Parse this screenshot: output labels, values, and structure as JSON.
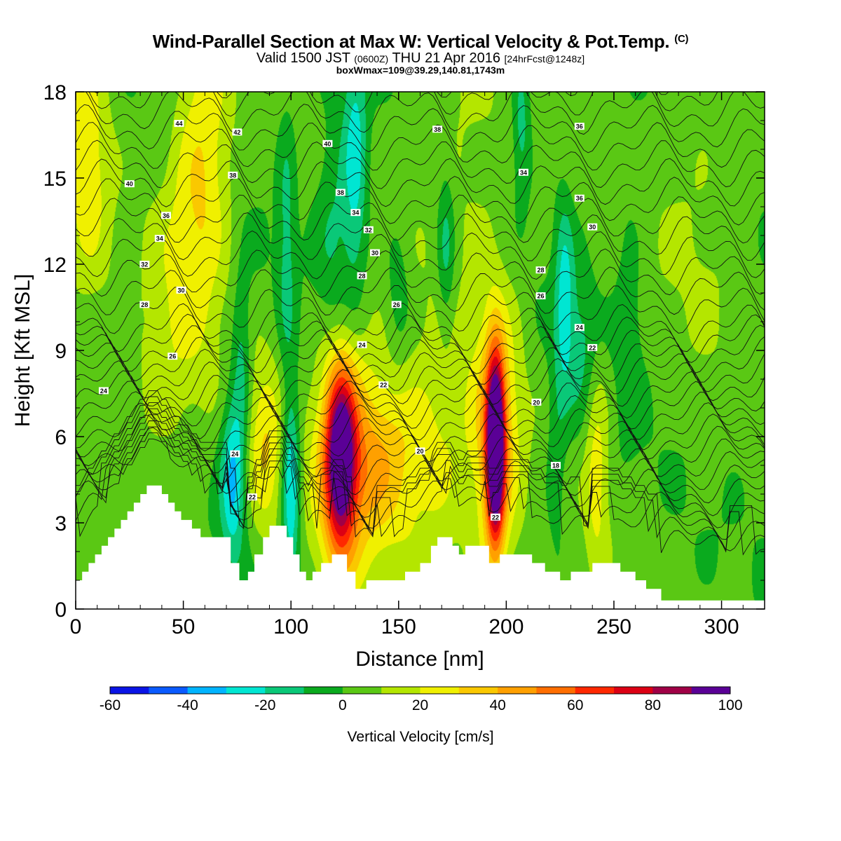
{
  "titles": {
    "main": "Wind-Parallel Section at Max W: Vertical Velocity & Pot.Temp.",
    "main_mark": "(C)",
    "valid_prefix": "Valid 1500 JST",
    "valid_zulu": "(0600Z)",
    "valid_date": "THU 21 Apr 2016",
    "valid_fcst": "[24hrFcst@1248z]",
    "box": "boxWmax=109@39.29,140.81,1743m"
  },
  "chart_data": {
    "type": "heatmap",
    "xlabel": "Distance [nm]",
    "ylabel": "Height [Kft MSL]",
    "xlim": [
      0,
      320
    ],
    "ylim": [
      0,
      18
    ],
    "xticks": [
      0,
      50,
      100,
      150,
      200,
      250,
      300
    ],
    "yticks": [
      0,
      3,
      6,
      9,
      12,
      15,
      18
    ],
    "colorbar": {
      "label": "Vertical Velocity [cm/s]",
      "levels": [
        -60,
        -50,
        -40,
        -30,
        -20,
        -10,
        0,
        10,
        20,
        30,
        40,
        50,
        60,
        70,
        80,
        90,
        100
      ],
      "tick_labels": [
        "-60",
        "-40",
        "-20",
        "0",
        "20",
        "40",
        "60",
        "80",
        "100"
      ],
      "colors": [
        "#0a14e6",
        "#0a5aff",
        "#00b4ff",
        "#00e6d2",
        "#0ac878",
        "#0aaa1e",
        "#5ac814",
        "#b4e600",
        "#f0f000",
        "#fac800",
        "#ffa000",
        "#ff6e00",
        "#ff2800",
        "#dc0014",
        "#a00046",
        "#5a0096"
      ]
    },
    "terrain_kft": [
      [
        0,
        1.0
      ],
      [
        3,
        1.0
      ],
      [
        3,
        1.3
      ],
      [
        6,
        1.3
      ],
      [
        6,
        1.6
      ],
      [
        9,
        1.6
      ],
      [
        9,
        1.9
      ],
      [
        12,
        1.9
      ],
      [
        12,
        2.2
      ],
      [
        15,
        2.2
      ],
      [
        15,
        2.5
      ],
      [
        18,
        2.5
      ],
      [
        18,
        2.8
      ],
      [
        21,
        2.8
      ],
      [
        21,
        3.1
      ],
      [
        24,
        3.1
      ],
      [
        24,
        3.4
      ],
      [
        27,
        3.4
      ],
      [
        27,
        3.7
      ],
      [
        30,
        3.7
      ],
      [
        30,
        4.0
      ],
      [
        33,
        4.0
      ],
      [
        33,
        4.3
      ],
      [
        40,
        4.3
      ],
      [
        40,
        4.0
      ],
      [
        43,
        4.0
      ],
      [
        43,
        3.7
      ],
      [
        46,
        3.7
      ],
      [
        46,
        3.4
      ],
      [
        49,
        3.4
      ],
      [
        49,
        3.1
      ],
      [
        54,
        3.1
      ],
      [
        54,
        2.8
      ],
      [
        58,
        2.8
      ],
      [
        58,
        2.5
      ],
      [
        72,
        2.5
      ],
      [
        72,
        1.6
      ],
      [
        76,
        1.6
      ],
      [
        76,
        1.0
      ],
      [
        80,
        1.0
      ],
      [
        80,
        1.3
      ],
      [
        83,
        1.3
      ],
      [
        83,
        1.9
      ],
      [
        87,
        1.9
      ],
      [
        87,
        2.5
      ],
      [
        90,
        2.5
      ],
      [
        90,
        2.9
      ],
      [
        98,
        2.9
      ],
      [
        98,
        2.5
      ],
      [
        101,
        2.5
      ],
      [
        101,
        1.9
      ],
      [
        104,
        1.9
      ],
      [
        104,
        1.3
      ],
      [
        107,
        1.3
      ],
      [
        107,
        1.0
      ],
      [
        110,
        1.0
      ],
      [
        110,
        1.3
      ],
      [
        114,
        1.3
      ],
      [
        114,
        1.6
      ],
      [
        119,
        1.6
      ],
      [
        119,
        1.9
      ],
      [
        126,
        1.9
      ],
      [
        126,
        1.3
      ],
      [
        130,
        1.3
      ],
      [
        130,
        0.7
      ],
      [
        135,
        0.7
      ],
      [
        135,
        1.0
      ],
      [
        153,
        1.0
      ],
      [
        153,
        1.3
      ],
      [
        160,
        1.3
      ],
      [
        160,
        1.6
      ],
      [
        165,
        1.6
      ],
      [
        165,
        2.2
      ],
      [
        168,
        2.2
      ],
      [
        168,
        2.5
      ],
      [
        175,
        2.5
      ],
      [
        175,
        2.2
      ],
      [
        178,
        2.2
      ],
      [
        178,
        1.9
      ],
      [
        181,
        1.9
      ],
      [
        181,
        2.2
      ],
      [
        192,
        2.2
      ],
      [
        192,
        1.6
      ],
      [
        197,
        1.6
      ],
      [
        197,
        1.9
      ],
      [
        212,
        1.9
      ],
      [
        212,
        1.6
      ],
      [
        218,
        1.6
      ],
      [
        218,
        1.3
      ],
      [
        225,
        1.3
      ],
      [
        225,
        1.0
      ],
      [
        230,
        1.0
      ],
      [
        230,
        1.3
      ],
      [
        240,
        1.3
      ],
      [
        240,
        1.6
      ],
      [
        253,
        1.6
      ],
      [
        253,
        1.3
      ],
      [
        260,
        1.3
      ],
      [
        260,
        1.0
      ],
      [
        265,
        1.0
      ],
      [
        265,
        0.7
      ],
      [
        272,
        0.7
      ],
      [
        272,
        0.3
      ],
      [
        320,
        0.3
      ]
    ],
    "w_features": [
      {
        "x": 123,
        "z": 5.3,
        "sx": 5,
        "sz": 2.2,
        "w": 85
      },
      {
        "x": 124,
        "z": 5.3,
        "sx": 11,
        "sz": 3.3,
        "w": 30
      },
      {
        "x": 195,
        "z": 5.6,
        "sx": 3,
        "sz": 2.2,
        "w": 110
      },
      {
        "x": 195,
        "z": 5.8,
        "sx": 8,
        "sz": 3.6,
        "w": 35
      },
      {
        "x": 143,
        "z": 5.2,
        "sx": 12,
        "sz": 2.2,
        "w": 32
      },
      {
        "x": 168,
        "z": 5.0,
        "sx": 11,
        "sz": 3.0,
        "w": 18
      },
      {
        "x": 88,
        "z": 5.6,
        "sx": 6,
        "sz": 2.2,
        "w": 25
      },
      {
        "x": 242,
        "z": 5.0,
        "sx": 4,
        "sz": 2.5,
        "w": 22
      },
      {
        "x": 60,
        "z": 16.0,
        "sx": 9,
        "sz": 3.8,
        "w": 25
      },
      {
        "x": 50,
        "z": 12.5,
        "sx": 10,
        "sz": 2.8,
        "w": 14
      },
      {
        "x": 5,
        "z": 15.8,
        "sx": 8,
        "sz": 3.8,
        "w": 22
      },
      {
        "x": 40,
        "z": 7.5,
        "sx": 14,
        "sz": 2.5,
        "w": 10
      },
      {
        "x": 73,
        "z": 4.6,
        "sx": 4,
        "sz": 2.0,
        "w": -35
      },
      {
        "x": 100,
        "z": 4.3,
        "sx": 3,
        "sz": 2.4,
        "w": -38
      },
      {
        "x": 77,
        "z": 8.5,
        "sx": 3,
        "sz": 2.2,
        "w": -18
      },
      {
        "x": 120,
        "z": 13.0,
        "sx": 6,
        "sz": 3.2,
        "w": -16
      },
      {
        "x": 130,
        "z": 15.6,
        "sx": 4,
        "sz": 3.2,
        "w": -28
      },
      {
        "x": 98,
        "z": 13.0,
        "sx": 3,
        "sz": 3.2,
        "w": -16
      },
      {
        "x": 172,
        "z": 12.5,
        "sx": 3,
        "sz": 2.2,
        "w": -20
      },
      {
        "x": 207,
        "z": 17.0,
        "sx": 3,
        "sz": 1.8,
        "w": -20
      },
      {
        "x": 227,
        "z": 10.8,
        "sx": 3,
        "sz": 2.4,
        "w": -26
      },
      {
        "x": 150,
        "z": 11.0,
        "sx": 4,
        "sz": 1.8,
        "w": -12
      },
      {
        "x": 257,
        "z": 10.0,
        "sx": 4,
        "sz": 2.8,
        "w": -12
      },
      {
        "x": 223,
        "z": 5.5,
        "sx": 3,
        "sz": 2.5,
        "w": -12
      },
      {
        "x": 235,
        "z": 9.0,
        "sx": 5,
        "sz": 2.0,
        "w": -14
      },
      {
        "x": 180,
        "z": 16.0,
        "sx": 15,
        "sz": 3.5,
        "w": 10
      },
      {
        "x": 290,
        "z": 14.0,
        "sx": 15,
        "sz": 4.0,
        "w": 8
      }
    ],
    "theta_levels": [
      18,
      20,
      22,
      24,
      26,
      28,
      30,
      32,
      34,
      36,
      38,
      40,
      42,
      44
    ],
    "theta_labels": [
      {
        "text": "44",
        "x": 48,
        "z": 16.9
      },
      {
        "text": "42",
        "x": 75,
        "z": 16.6
      },
      {
        "text": "40",
        "x": 117,
        "z": 16.2
      },
      {
        "text": "38",
        "x": 168,
        "z": 16.7
      },
      {
        "text": "36",
        "x": 234,
        "z": 16.8
      },
      {
        "text": "40",
        "x": 25,
        "z": 14.8
      },
      {
        "text": "38",
        "x": 73,
        "z": 15.1
      },
      {
        "text": "38",
        "x": 123,
        "z": 14.5
      },
      {
        "text": "34",
        "x": 208,
        "z": 15.2
      },
      {
        "text": "36",
        "x": 42,
        "z": 13.7
      },
      {
        "text": "34",
        "x": 130,
        "z": 13.8
      },
      {
        "text": "36",
        "x": 234,
        "z": 14.3
      },
      {
        "text": "34",
        "x": 39,
        "z": 12.9
      },
      {
        "text": "32",
        "x": 136,
        "z": 13.2
      },
      {
        "text": "30",
        "x": 240,
        "z": 13.3
      },
      {
        "text": "32",
        "x": 32,
        "z": 12.0
      },
      {
        "text": "30",
        "x": 139,
        "z": 12.4
      },
      {
        "text": "28",
        "x": 216,
        "z": 11.8
      },
      {
        "text": "30",
        "x": 49,
        "z": 11.1
      },
      {
        "text": "28",
        "x": 133,
        "z": 11.6
      },
      {
        "text": "26",
        "x": 216,
        "z": 10.9
      },
      {
        "text": "28",
        "x": 32,
        "z": 10.6
      },
      {
        "text": "26",
        "x": 149,
        "z": 10.6
      },
      {
        "text": "24",
        "x": 234,
        "z": 9.8
      },
      {
        "text": "26",
        "x": 45,
        "z": 8.8
      },
      {
        "text": "24",
        "x": 133,
        "z": 9.2
      },
      {
        "text": "22",
        "x": 240,
        "z": 9.1
      },
      {
        "text": "24",
        "x": 13,
        "z": 7.6
      },
      {
        "text": "22",
        "x": 143,
        "z": 7.8
      },
      {
        "text": "20",
        "x": 214,
        "z": 7.2
      },
      {
        "text": "24",
        "x": 74,
        "z": 5.4
      },
      {
        "text": "20",
        "x": 160,
        "z": 5.5
      },
      {
        "text": "18",
        "x": 223,
        "z": 5.0
      },
      {
        "text": "22",
        "x": 82,
        "z": 3.9
      },
      {
        "text": "22",
        "x": 195,
        "z": 3.2
      }
    ]
  }
}
